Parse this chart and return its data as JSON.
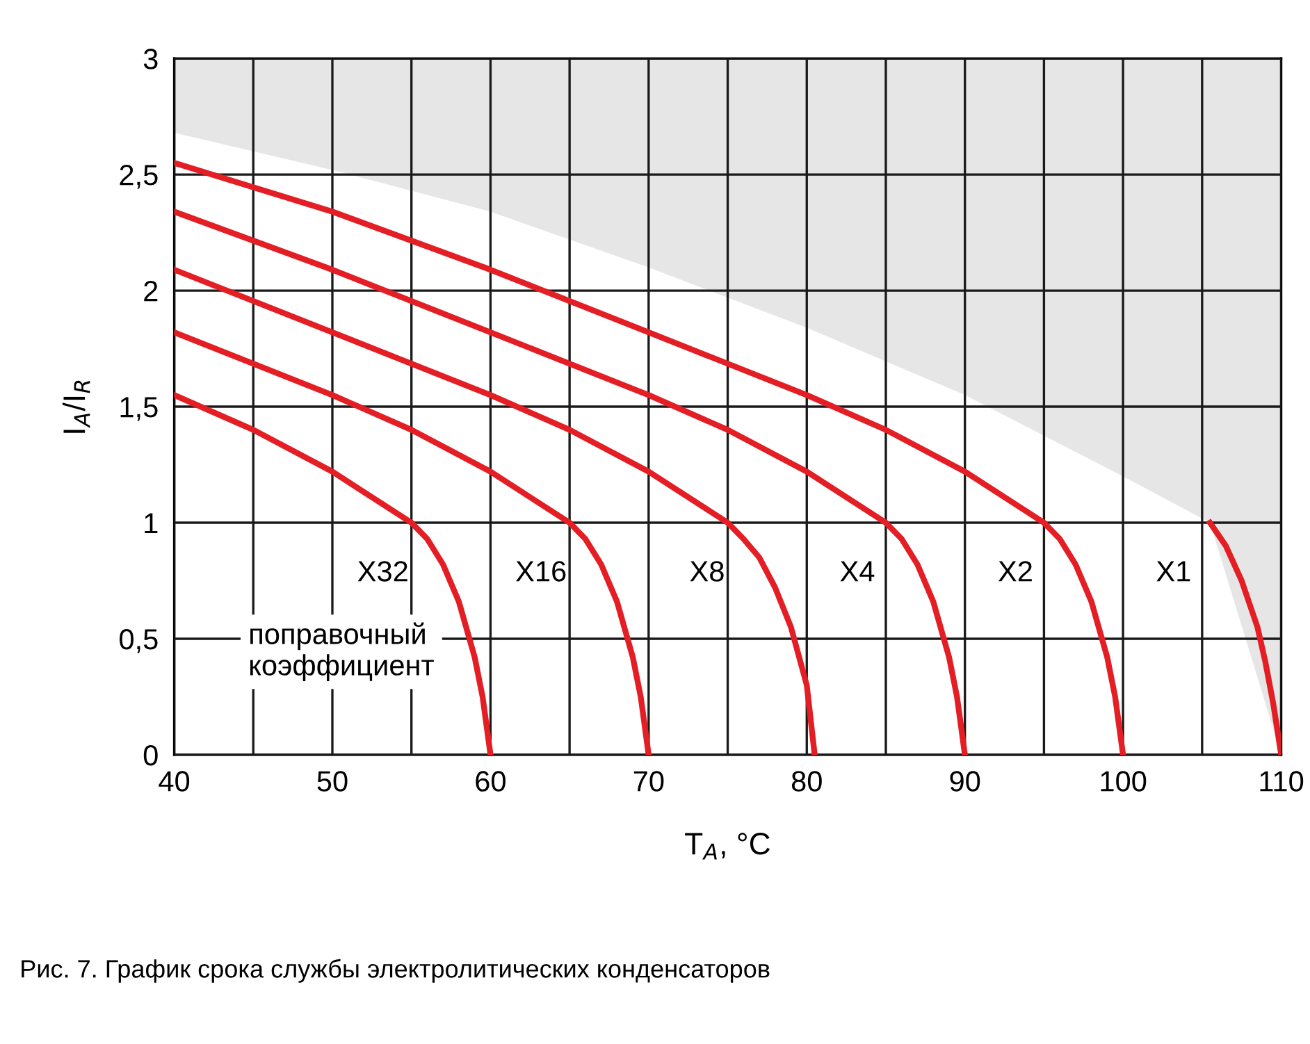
{
  "chart_data": {
    "type": "line",
    "xlabel": "T$_{A}$, °C",
    "ylabel": "I$_{A}$/I$_{R}$",
    "xlim": [
      40,
      110
    ],
    "ylim": [
      0,
      3
    ],
    "xticks": [
      40,
      {
        "value": 45,
        "label": null
      },
      50,
      {
        "value": 55,
        "label": null
      },
      60,
      {
        "value": 65,
        "label": null
      },
      70,
      {
        "value": 75,
        "label": null
      },
      80,
      {
        "value": 85,
        "label": null
      },
      90,
      {
        "value": 95,
        "label": null
      },
      100,
      {
        "value": 105,
        "label": null
      },
      110
    ],
    "yticks": [
      0,
      {
        "value": 0.5,
        "label": "0,5"
      },
      1,
      {
        "value": 1.5,
        "label": "1,5"
      },
      2,
      {
        "value": 2.5,
        "label": "2,5"
      },
      3
    ],
    "grid": true,
    "legend": false,
    "marker": "none",
    "line_style": "solid",
    "series": [
      {
        "type": "area",
        "color": "#ffffff",
        "x": [
          40,
          50,
          60,
          70,
          80,
          90,
          100,
          105.5,
          110
        ],
        "values": [
          2.68,
          2.52,
          2.34,
          2.1,
          1.84,
          1.55,
          1.2,
          1.0,
          0
        ]
      },
      {
        "name": "X32",
        "color": "#e31e24",
        "x": [
          40,
          45,
          50,
          55,
          56,
          57,
          58,
          59,
          59.5,
          60
        ],
        "values": [
          1.55,
          1.4,
          1.22,
          1.0,
          0.93,
          0.82,
          0.66,
          0.42,
          0.25,
          0
        ]
      },
      {
        "name": "X16",
        "color": "#e31e24",
        "x": [
          40,
          50,
          55,
          60,
          65,
          66,
          67,
          68,
          69,
          69.5,
          70
        ],
        "values": [
          1.82,
          1.55,
          1.4,
          1.22,
          1.0,
          0.93,
          0.82,
          0.66,
          0.42,
          0.25,
          0
        ]
      },
      {
        "name": "X8",
        "color": "#e31e24",
        "x": [
          40,
          50,
          60,
          65,
          70,
          75,
          76,
          77,
          78,
          79,
          80,
          80.5
        ],
        "values": [
          2.09,
          1.82,
          1.55,
          1.4,
          1.22,
          1.0,
          0.93,
          0.85,
          0.72,
          0.55,
          0.3,
          0
        ]
      },
      {
        "name": "X4",
        "color": "#e31e24",
        "x": [
          40,
          50,
          60,
          70,
          75,
          80,
          85,
          86,
          87,
          88,
          89,
          89.5,
          90
        ],
        "values": [
          2.34,
          2.09,
          1.82,
          1.55,
          1.4,
          1.22,
          1.0,
          0.93,
          0.82,
          0.66,
          0.42,
          0.25,
          0
        ]
      },
      {
        "name": "X2",
        "color": "#e31e24",
        "x": [
          40,
          50,
          60,
          70,
          80,
          85,
          90,
          95,
          96,
          97,
          98,
          99,
          99.5,
          100
        ],
        "values": [
          2.55,
          2.34,
          2.09,
          1.82,
          1.55,
          1.4,
          1.22,
          1.0,
          0.93,
          0.82,
          0.66,
          0.42,
          0.25,
          0
        ]
      },
      {
        "name": "X1",
        "color": "#e31e24",
        "x": [
          105.5,
          106.5,
          107.5,
          108.5,
          109,
          109.5,
          110
        ],
        "values": [
          1.0,
          0.9,
          0.75,
          0.55,
          0.4,
          0.22,
          0
        ]
      }
    ],
    "annotations": [
      "поправочный\nкоэффициент",
      "Рис. 7. График срока службы электролитических конденсаторов"
    ]
  }
}
